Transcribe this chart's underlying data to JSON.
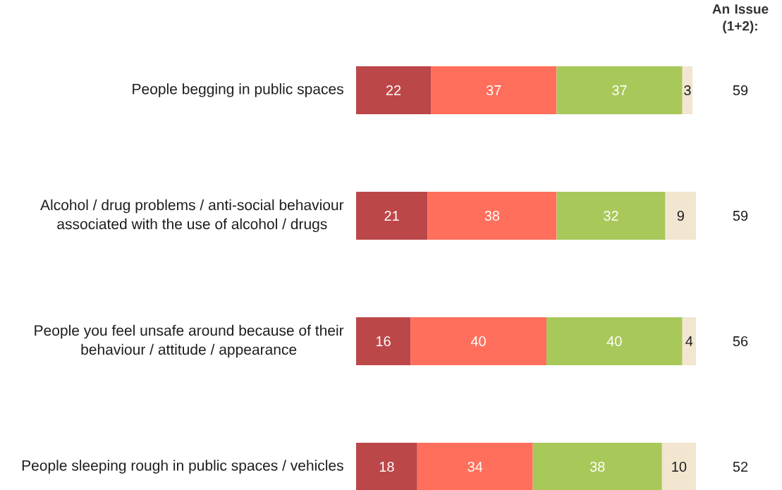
{
  "chart_data": {
    "type": "bar",
    "orientation": "horizontal",
    "stacked": true,
    "categories": [
      "People begging in public spaces",
      "Alcohol / drug problems / anti-social behaviour associated with the use of alcohol / drugs",
      "People you feel unsafe around because of their behaviour / attitude / appearance",
      "People sleeping rough in public spaces / vehicles"
    ],
    "series": [
      {
        "color": "#bc4749",
        "values": [
          22,
          21,
          16,
          18
        ]
      },
      {
        "color": "#ff6f5b",
        "values": [
          37,
          38,
          40,
          34
        ]
      },
      {
        "color": "#a8c85a",
        "values": [
          37,
          32,
          40,
          38
        ]
      },
      {
        "color": "#f2e6d0",
        "values": [
          3,
          9,
          4,
          10
        ]
      }
    ],
    "data_labels": true,
    "annotations": [
      "An Issue (1+2):",
      "59",
      "59",
      "56",
      "52"
    ]
  }
}
